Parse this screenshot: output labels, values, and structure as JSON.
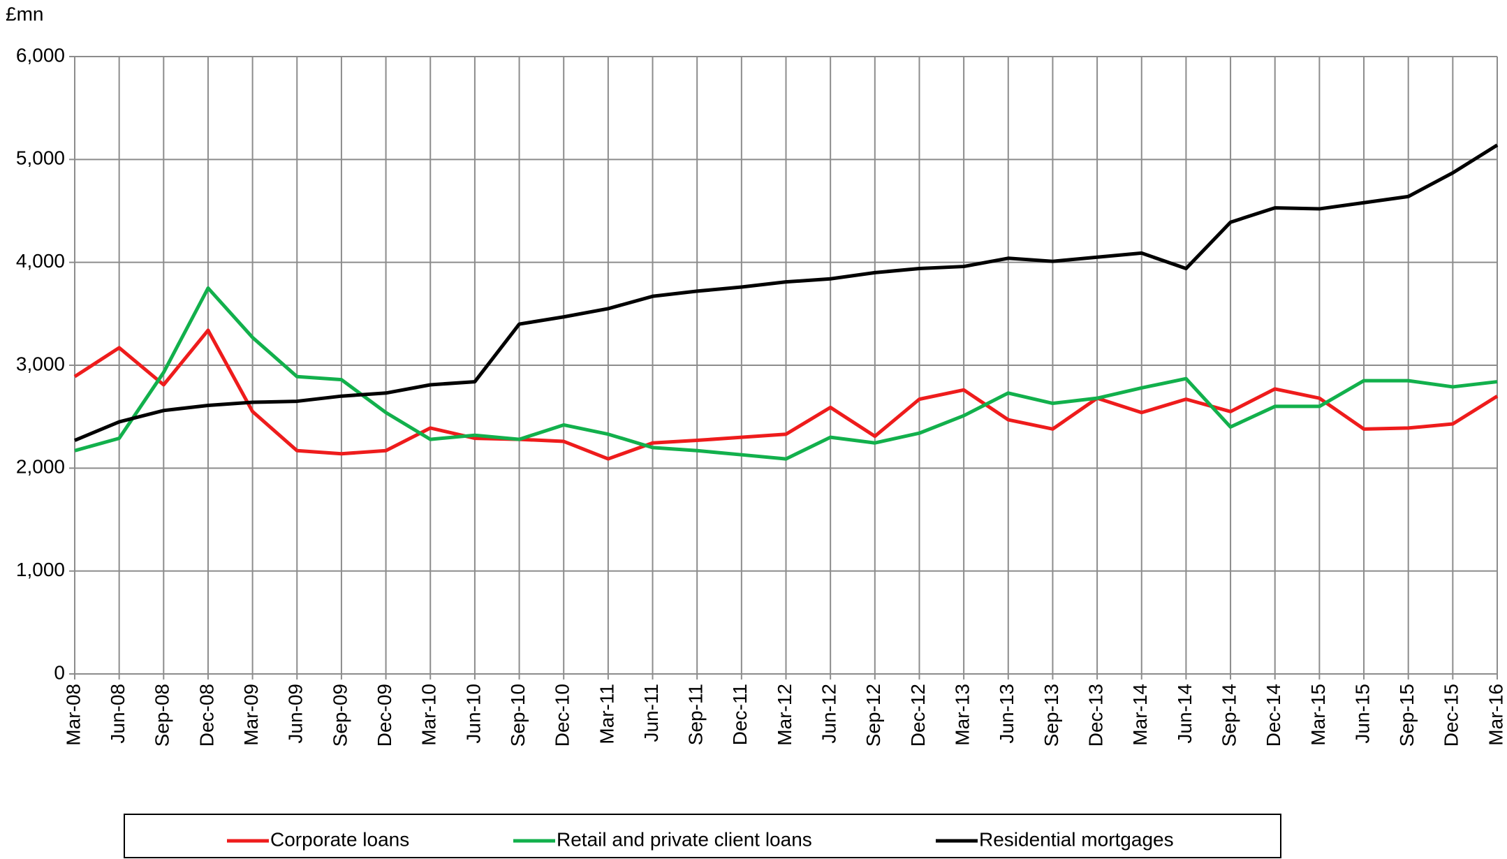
{
  "chart_data": {
    "type": "line",
    "y_label": "£mn",
    "categories": [
      "Mar-08",
      "Jun-08",
      "Sep-08",
      "Dec-08",
      "Mar-09",
      "Jun-09",
      "Sep-09",
      "Dec-09",
      "Mar-10",
      "Jun-10",
      "Sep-10",
      "Dec-10",
      "Mar-11",
      "Jun-11",
      "Sep-11",
      "Dec-11",
      "Mar-12",
      "Jun-12",
      "Sep-12",
      "Dec-12",
      "Mar-13",
      "Jun-13",
      "Sep-13",
      "Dec-13",
      "Mar-14",
      "Jun-14",
      "Sep-14",
      "Dec-14",
      "Mar-15",
      "Jun-15",
      "Sep-15",
      "Dec-15",
      "Mar-16"
    ],
    "series": [
      {
        "name": "Corporate loans",
        "color": "#ee1c1c",
        "values": [
          2890,
          3170,
          2810,
          3340,
          2550,
          2170,
          2140,
          2170,
          2390,
          2290,
          2280,
          2260,
          2090,
          2245,
          2270,
          2300,
          2330,
          2590,
          2310,
          2670,
          2760,
          2470,
          2380,
          2680,
          2540,
          2670,
          2550,
          2770,
          2680,
          2380,
          2390,
          2430,
          2700
        ]
      },
      {
        "name": "Retail and private client loans",
        "color": "#12b04c",
        "values": [
          2170,
          2290,
          2930,
          3750,
          3270,
          2890,
          2860,
          2540,
          2280,
          2320,
          2280,
          2420,
          2330,
          2200,
          2170,
          2130,
          2090,
          2300,
          2245,
          2340,
          2510,
          2730,
          2630,
          2680,
          2780,
          2870,
          2400,
          2600,
          2600,
          2850,
          2850,
          2790,
          2840
        ]
      },
      {
        "name": "Residential mortgages",
        "color": "#000000",
        "values": [
          2270,
          2450,
          2560,
          2610,
          2640,
          2650,
          2700,
          2730,
          2810,
          2840,
          3400,
          3470,
          3550,
          3670,
          3720,
          3760,
          3810,
          3840,
          3900,
          3940,
          3960,
          4040,
          4010,
          4050,
          4090,
          3940,
          4390,
          4530,
          4520,
          4580,
          4640,
          4870,
          5140
        ]
      }
    ],
    "ylim": [
      0,
      6000
    ],
    "yticks": [
      0,
      {
        "value": 1000,
        "label": "1,000"
      },
      {
        "value": 2000,
        "label": "2,000"
      },
      {
        "value": 3000,
        "label": "3,000"
      },
      {
        "value": 4000,
        "label": "4,000"
      },
      {
        "value": 5000,
        "label": "5,000"
      },
      {
        "value": 6000,
        "label": "6,000"
      }
    ],
    "grid": true,
    "legend": "bottom"
  }
}
